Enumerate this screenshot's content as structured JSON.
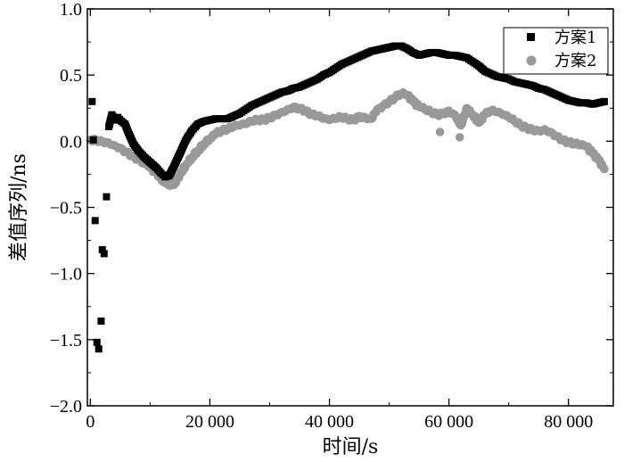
{
  "chart_data": {
    "type": "scatter",
    "xlabel": "时间/s",
    "ylabel": "差值序列/ns",
    "xlim": [
      -500,
      87500
    ],
    "ylim": [
      -2.0,
      1.0
    ],
    "x_ticks": [
      0,
      20000,
      40000,
      60000,
      80000
    ],
    "x_tick_labels": [
      "0",
      "20 000",
      "40 000",
      "60 000",
      "80 000"
    ],
    "y_ticks": [
      1.0,
      0.5,
      0.0,
      -0.5,
      -1.0,
      -1.5,
      -2.0
    ],
    "y_tick_labels": [
      "1.0",
      "0.5",
      "0.0",
      "−0.5",
      "−1.0",
      "−1.5",
      "−2.0"
    ],
    "legend_position": "top-right",
    "series": [
      {
        "name": "方案1",
        "marker": "square",
        "color": "#000000",
        "points": [
          [
            300,
            0.3
          ],
          [
            500,
            0.01
          ],
          [
            800,
            -0.6
          ],
          [
            1100,
            -1.52
          ],
          [
            1400,
            -1.57
          ],
          [
            1800,
            -1.36
          ],
          [
            2000,
            -0.82
          ],
          [
            2300,
            -0.85
          ],
          [
            2700,
            -0.42
          ],
          [
            3100,
            0.11
          ],
          [
            3600,
            0.2
          ],
          [
            4100,
            0.16
          ],
          [
            4600,
            0.18
          ],
          [
            5200,
            0.15
          ],
          [
            5800,
            0.13
          ],
          [
            6500,
            0.05
          ],
          [
            7200,
            -0.02
          ],
          [
            8000,
            -0.07
          ],
          [
            9000,
            -0.12
          ],
          [
            10000,
            -0.16
          ],
          [
            11000,
            -0.2
          ],
          [
            11800,
            -0.24
          ],
          [
            12500,
            -0.27
          ],
          [
            13200,
            -0.26
          ],
          [
            14000,
            -0.19
          ],
          [
            15000,
            -0.09
          ],
          [
            16000,
            0.01
          ],
          [
            17000,
            0.08
          ],
          [
            18000,
            0.13
          ],
          [
            19000,
            0.15
          ],
          [
            20000,
            0.16
          ],
          [
            21000,
            0.17
          ],
          [
            22000,
            0.17
          ],
          [
            23000,
            0.17
          ],
          [
            24000,
            0.19
          ],
          [
            25000,
            0.21
          ],
          [
            26000,
            0.24
          ],
          [
            27000,
            0.27
          ],
          [
            28000,
            0.29
          ],
          [
            29000,
            0.31
          ],
          [
            30000,
            0.33
          ],
          [
            31000,
            0.35
          ],
          [
            32000,
            0.37
          ],
          [
            33000,
            0.38
          ],
          [
            34000,
            0.4
          ],
          [
            35000,
            0.41
          ],
          [
            36000,
            0.43
          ],
          [
            37000,
            0.45
          ],
          [
            38000,
            0.47
          ],
          [
            39000,
            0.5
          ],
          [
            40000,
            0.52
          ],
          [
            41000,
            0.55
          ],
          [
            42000,
            0.58
          ],
          [
            43000,
            0.6
          ],
          [
            44000,
            0.62
          ],
          [
            45000,
            0.64
          ],
          [
            46000,
            0.66
          ],
          [
            47000,
            0.68
          ],
          [
            48000,
            0.69
          ],
          [
            49000,
            0.7
          ],
          [
            50000,
            0.71
          ],
          [
            51000,
            0.72
          ],
          [
            52000,
            0.72
          ],
          [
            53000,
            0.7
          ],
          [
            54000,
            0.67
          ],
          [
            55000,
            0.65
          ],
          [
            56000,
            0.66
          ],
          [
            57000,
            0.67
          ],
          [
            58000,
            0.67
          ],
          [
            59000,
            0.66
          ],
          [
            60000,
            0.65
          ],
          [
            61000,
            0.65
          ],
          [
            62000,
            0.64
          ],
          [
            63000,
            0.63
          ],
          [
            64000,
            0.6
          ],
          [
            65000,
            0.57
          ],
          [
            66000,
            0.53
          ],
          [
            67000,
            0.51
          ],
          [
            68000,
            0.49
          ],
          [
            69000,
            0.48
          ],
          [
            70000,
            0.47
          ],
          [
            71000,
            0.45
          ],
          [
            72000,
            0.44
          ],
          [
            73000,
            0.43
          ],
          [
            74000,
            0.42
          ],
          [
            75000,
            0.4
          ],
          [
            76000,
            0.39
          ],
          [
            77000,
            0.37
          ],
          [
            78000,
            0.35
          ],
          [
            79000,
            0.33
          ],
          [
            80000,
            0.31
          ],
          [
            81000,
            0.3
          ],
          [
            82000,
            0.29
          ],
          [
            83000,
            0.29
          ],
          [
            84000,
            0.28
          ],
          [
            85000,
            0.29
          ],
          [
            86000,
            0.3
          ]
        ]
      },
      {
        "name": "方案2",
        "marker": "circle",
        "color": "#999999",
        "points": [
          [
            0,
            0.01
          ],
          [
            1000,
            0.01
          ],
          [
            2000,
            0.0
          ],
          [
            3000,
            -0.01
          ],
          [
            4000,
            -0.03
          ],
          [
            5000,
            -0.05
          ],
          [
            6000,
            -0.08
          ],
          [
            7000,
            -0.11
          ],
          [
            8000,
            -0.14
          ],
          [
            9000,
            -0.17
          ],
          [
            10000,
            -0.2
          ],
          [
            11000,
            -0.24
          ],
          [
            12000,
            -0.3
          ],
          [
            13000,
            -0.33
          ],
          [
            14000,
            -0.33
          ],
          [
            15000,
            -0.25
          ],
          [
            16000,
            -0.18
          ],
          [
            17000,
            -0.12
          ],
          [
            18000,
            -0.07
          ],
          [
            19000,
            -0.02
          ],
          [
            20000,
            0.02
          ],
          [
            21000,
            0.06
          ],
          [
            22000,
            0.08
          ],
          [
            23000,
            0.09
          ],
          [
            24000,
            0.11
          ],
          [
            25000,
            0.12
          ],
          [
            26000,
            0.13
          ],
          [
            27000,
            0.15
          ],
          [
            28000,
            0.16
          ],
          [
            29000,
            0.16
          ],
          [
            30000,
            0.18
          ],
          [
            31000,
            0.2
          ],
          [
            32000,
            0.22
          ],
          [
            33000,
            0.24
          ],
          [
            34000,
            0.26
          ],
          [
            35000,
            0.25
          ],
          [
            36000,
            0.23
          ],
          [
            37000,
            0.2
          ],
          [
            38000,
            0.19
          ],
          [
            39000,
            0.17
          ],
          [
            40000,
            0.16
          ],
          [
            41000,
            0.17
          ],
          [
            42000,
            0.18
          ],
          [
            43000,
            0.17
          ],
          [
            44000,
            0.16
          ],
          [
            45000,
            0.19
          ],
          [
            46000,
            0.18
          ],
          [
            47000,
            0.17
          ],
          [
            48000,
            0.24
          ],
          [
            49000,
            0.27
          ],
          [
            50000,
            0.3
          ],
          [
            51000,
            0.33
          ],
          [
            52000,
            0.36
          ],
          [
            53000,
            0.35
          ],
          [
            54000,
            0.3
          ],
          [
            55000,
            0.26
          ],
          [
            56000,
            0.24
          ],
          [
            57000,
            0.22
          ],
          [
            58000,
            0.2
          ],
          [
            59000,
            0.21
          ],
          [
            60000,
            0.23
          ],
          [
            61000,
            0.2
          ],
          [
            62000,
            0.12
          ],
          [
            63000,
            0.25
          ],
          [
            64000,
            0.2
          ],
          [
            65000,
            0.14
          ],
          [
            66000,
            0.2
          ],
          [
            67000,
            0.23
          ],
          [
            68000,
            0.22
          ],
          [
            69000,
            0.2
          ],
          [
            70000,
            0.18
          ],
          [
            71000,
            0.15
          ],
          [
            72000,
            0.12
          ],
          [
            73000,
            0.1
          ],
          [
            74000,
            0.09
          ],
          [
            75000,
            0.08
          ],
          [
            76000,
            0.09
          ],
          [
            77000,
            0.07
          ],
          [
            78000,
            0.04
          ],
          [
            79000,
            0.01
          ],
          [
            80000,
            -0.01
          ],
          [
            81000,
            -0.02
          ],
          [
            82000,
            -0.03
          ],
          [
            83000,
            -0.04
          ],
          [
            84000,
            -0.09
          ],
          [
            85000,
            -0.14
          ],
          [
            86000,
            -0.21
          ]
        ]
      },
      {
        "name": "方案2",
        "marker": "circle",
        "color": "#999999",
        "points": [
          [
            58500,
            0.07
          ],
          [
            61800,
            0.03
          ]
        ],
        "is_continuation": true
      }
    ]
  }
}
